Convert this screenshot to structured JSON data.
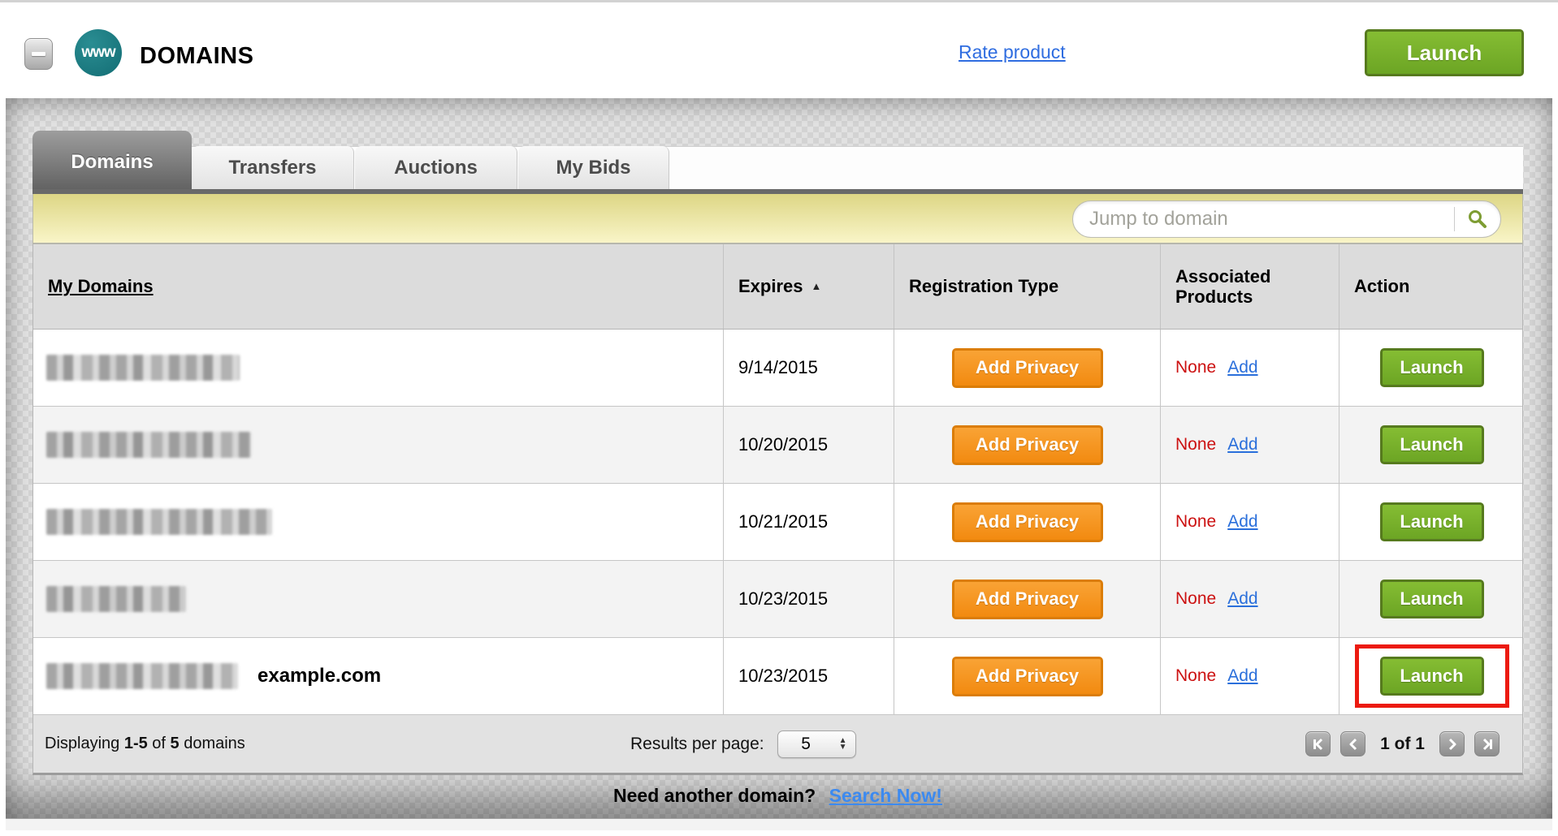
{
  "header": {
    "title": "DOMAINS",
    "logo_text": "www",
    "rate_product_label": "Rate product",
    "launch_label": "Launch"
  },
  "tabs": [
    {
      "label": "Domains",
      "active": true
    },
    {
      "label": "Transfers",
      "active": false
    },
    {
      "label": "Auctions",
      "active": false
    },
    {
      "label": "My Bids",
      "active": false
    }
  ],
  "search": {
    "placeholder": "Jump to domain",
    "icon": "magnifier-icon"
  },
  "table": {
    "columns": [
      "My Domains",
      "Expires",
      "Registration Type",
      "Associated Products",
      "Action"
    ],
    "sort": {
      "column": "Expires",
      "direction": "asc",
      "arrow": "▲"
    },
    "rows": [
      {
        "domain_censored": true,
        "censor_width": 238,
        "domain_label": "",
        "expires": "9/14/2015",
        "registration_button": "Add Privacy",
        "associated": "None",
        "add_link": "Add",
        "action_button": "Launch",
        "highlighted": false
      },
      {
        "domain_censored": true,
        "censor_width": 252,
        "domain_label": "",
        "expires": "10/20/2015",
        "registration_button": "Add Privacy",
        "associated": "None",
        "add_link": "Add",
        "action_button": "Launch",
        "highlighted": false
      },
      {
        "domain_censored": true,
        "censor_width": 278,
        "domain_label": "",
        "expires": "10/21/2015",
        "registration_button": "Add Privacy",
        "associated": "None",
        "add_link": "Add",
        "action_button": "Launch",
        "highlighted": false
      },
      {
        "domain_censored": true,
        "censor_width": 172,
        "domain_label": "",
        "expires": "10/23/2015",
        "registration_button": "Add Privacy",
        "associated": "None",
        "add_link": "Add",
        "action_button": "Launch",
        "highlighted": false
      },
      {
        "domain_censored": true,
        "censor_width": 236,
        "domain_label": "example.com",
        "expires": "10/23/2015",
        "registration_button": "Add Privacy",
        "associated": "None",
        "add_link": "Add",
        "action_button": "Launch",
        "highlighted": true
      }
    ]
  },
  "footer": {
    "displaying_prefix": "Displaying ",
    "range": "1-5",
    "of": " of ",
    "total": "5",
    "suffix": " domains",
    "results_per_page_label": "Results per page:",
    "results_per_page_value": "5",
    "page_status": "1 of 1"
  },
  "bottom": {
    "prompt": "Need another domain?",
    "link_label": "Search Now!"
  },
  "colors": {
    "accent_green": "#76b02c",
    "accent_orange": "#f7941e",
    "none_red": "#cc1111",
    "link_blue": "#2f6de0",
    "highlight_red": "#ec1a10",
    "searchbar_yellow": "#ece5a0",
    "logo_teal": "#15787e"
  }
}
